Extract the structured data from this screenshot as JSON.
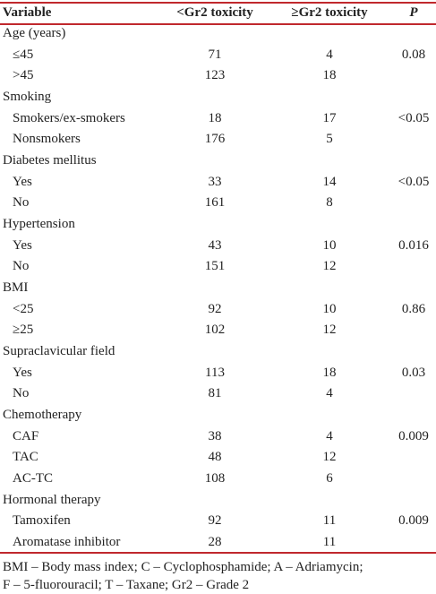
{
  "table": {
    "columns": [
      "Variable",
      "<Gr2 toxicity",
      "≥Gr2 toxicity",
      "P"
    ],
    "groups": [
      {
        "label": "Age (years)",
        "rows": [
          [
            "≤45",
            71,
            4,
            0.08
          ],
          [
            ">45",
            123,
            18,
            null
          ]
        ]
      },
      {
        "label": "Smoking",
        "rows": [
          [
            "Smokers/ex-smokers",
            18,
            17,
            "<0.05"
          ],
          [
            "Nonsmokers",
            176,
            5,
            null
          ]
        ]
      },
      {
        "label": "Diabetes mellitus",
        "rows": [
          [
            "Yes",
            33,
            14,
            "<0.05"
          ],
          [
            "No",
            161,
            8,
            null
          ]
        ]
      },
      {
        "label": "Hypertension",
        "rows": [
          [
            "Yes",
            43,
            10,
            0.016
          ],
          [
            "No",
            151,
            12,
            null
          ]
        ]
      },
      {
        "label": "BMI",
        "rows": [
          [
            "<25",
            92,
            10,
            0.86
          ],
          [
            "≥25",
            102,
            12,
            null
          ]
        ]
      },
      {
        "label": "Supraclavicular field",
        "rows": [
          [
            "Yes",
            113,
            18,
            0.03
          ],
          [
            "No",
            81,
            4,
            null
          ]
        ]
      },
      {
        "label": "Chemotherapy",
        "rows": [
          [
            "CAF",
            38,
            4,
            0.009
          ],
          [
            "TAC",
            48,
            12,
            null
          ],
          [
            "AC-TC",
            108,
            6,
            null
          ]
        ]
      },
      {
        "label": "Hormonal therapy",
        "rows": [
          [
            "Tamoxifen",
            92,
            11,
            0.009
          ],
          [
            "Aromatase inhibitor",
            28,
            11,
            null
          ]
        ]
      }
    ],
    "footnote": [
      "BMI – Body mass index; C – Cyclophosphamide; A – Adriamycin;",
      "F – 5-fluorouracil; T – Taxane; Gr2 – Grade 2"
    ]
  }
}
